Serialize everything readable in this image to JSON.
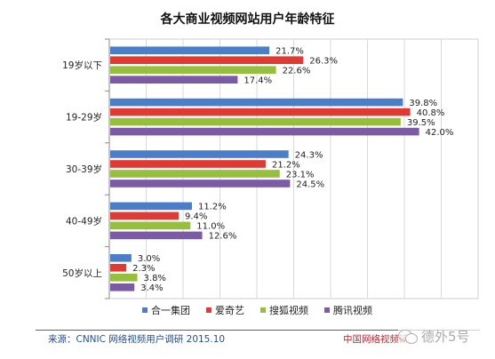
{
  "chart_data": {
    "type": "bar",
    "orientation": "horizontal",
    "title": "各大商业视频网站用户年龄特征",
    "categories": [
      "19岁以下",
      "19-29岁",
      "30-39岁",
      "40-49岁",
      "50岁以上"
    ],
    "series": [
      {
        "name": "合一集团",
        "color": "#4a7ec9",
        "values": [
          21.7,
          39.8,
          24.3,
          11.2,
          3.0
        ],
        "labels": [
          "21.7%",
          "39.8%",
          "24.3%",
          "11.2%",
          "3.0%"
        ]
      },
      {
        "name": "爱奇艺",
        "color": "#e03a35",
        "values": [
          26.3,
          40.8,
          21.2,
          9.4,
          2.3
        ],
        "labels": [
          "26.3%",
          "40.8%",
          "21.2%",
          "9.4%",
          "2.3%"
        ]
      },
      {
        "name": "搜狐视频",
        "color": "#95bf3d",
        "values": [
          22.6,
          39.5,
          23.1,
          11.0,
          3.8
        ],
        "labels": [
          "22.6%",
          "39.5%",
          "23.1%",
          "11.0%",
          "3.8%"
        ]
      },
      {
        "name": "腾讯视频",
        "color": "#7b5aa6",
        "values": [
          17.4,
          42.0,
          24.5,
          12.6,
          3.4
        ],
        "labels": [
          "17.4%",
          "42.0%",
          "24.5%",
          "12.6%",
          "3.4%"
        ]
      }
    ],
    "xlim": [
      0,
      50
    ],
    "grid": true,
    "legend_position": "bottom"
  },
  "footer": {
    "source": "来源：CNNIC 网络视频用户调研   2015.10",
    "org": "中国网络视频研"
  },
  "watermark": {
    "text": "德外5号",
    "icon": "wechat-icon"
  }
}
